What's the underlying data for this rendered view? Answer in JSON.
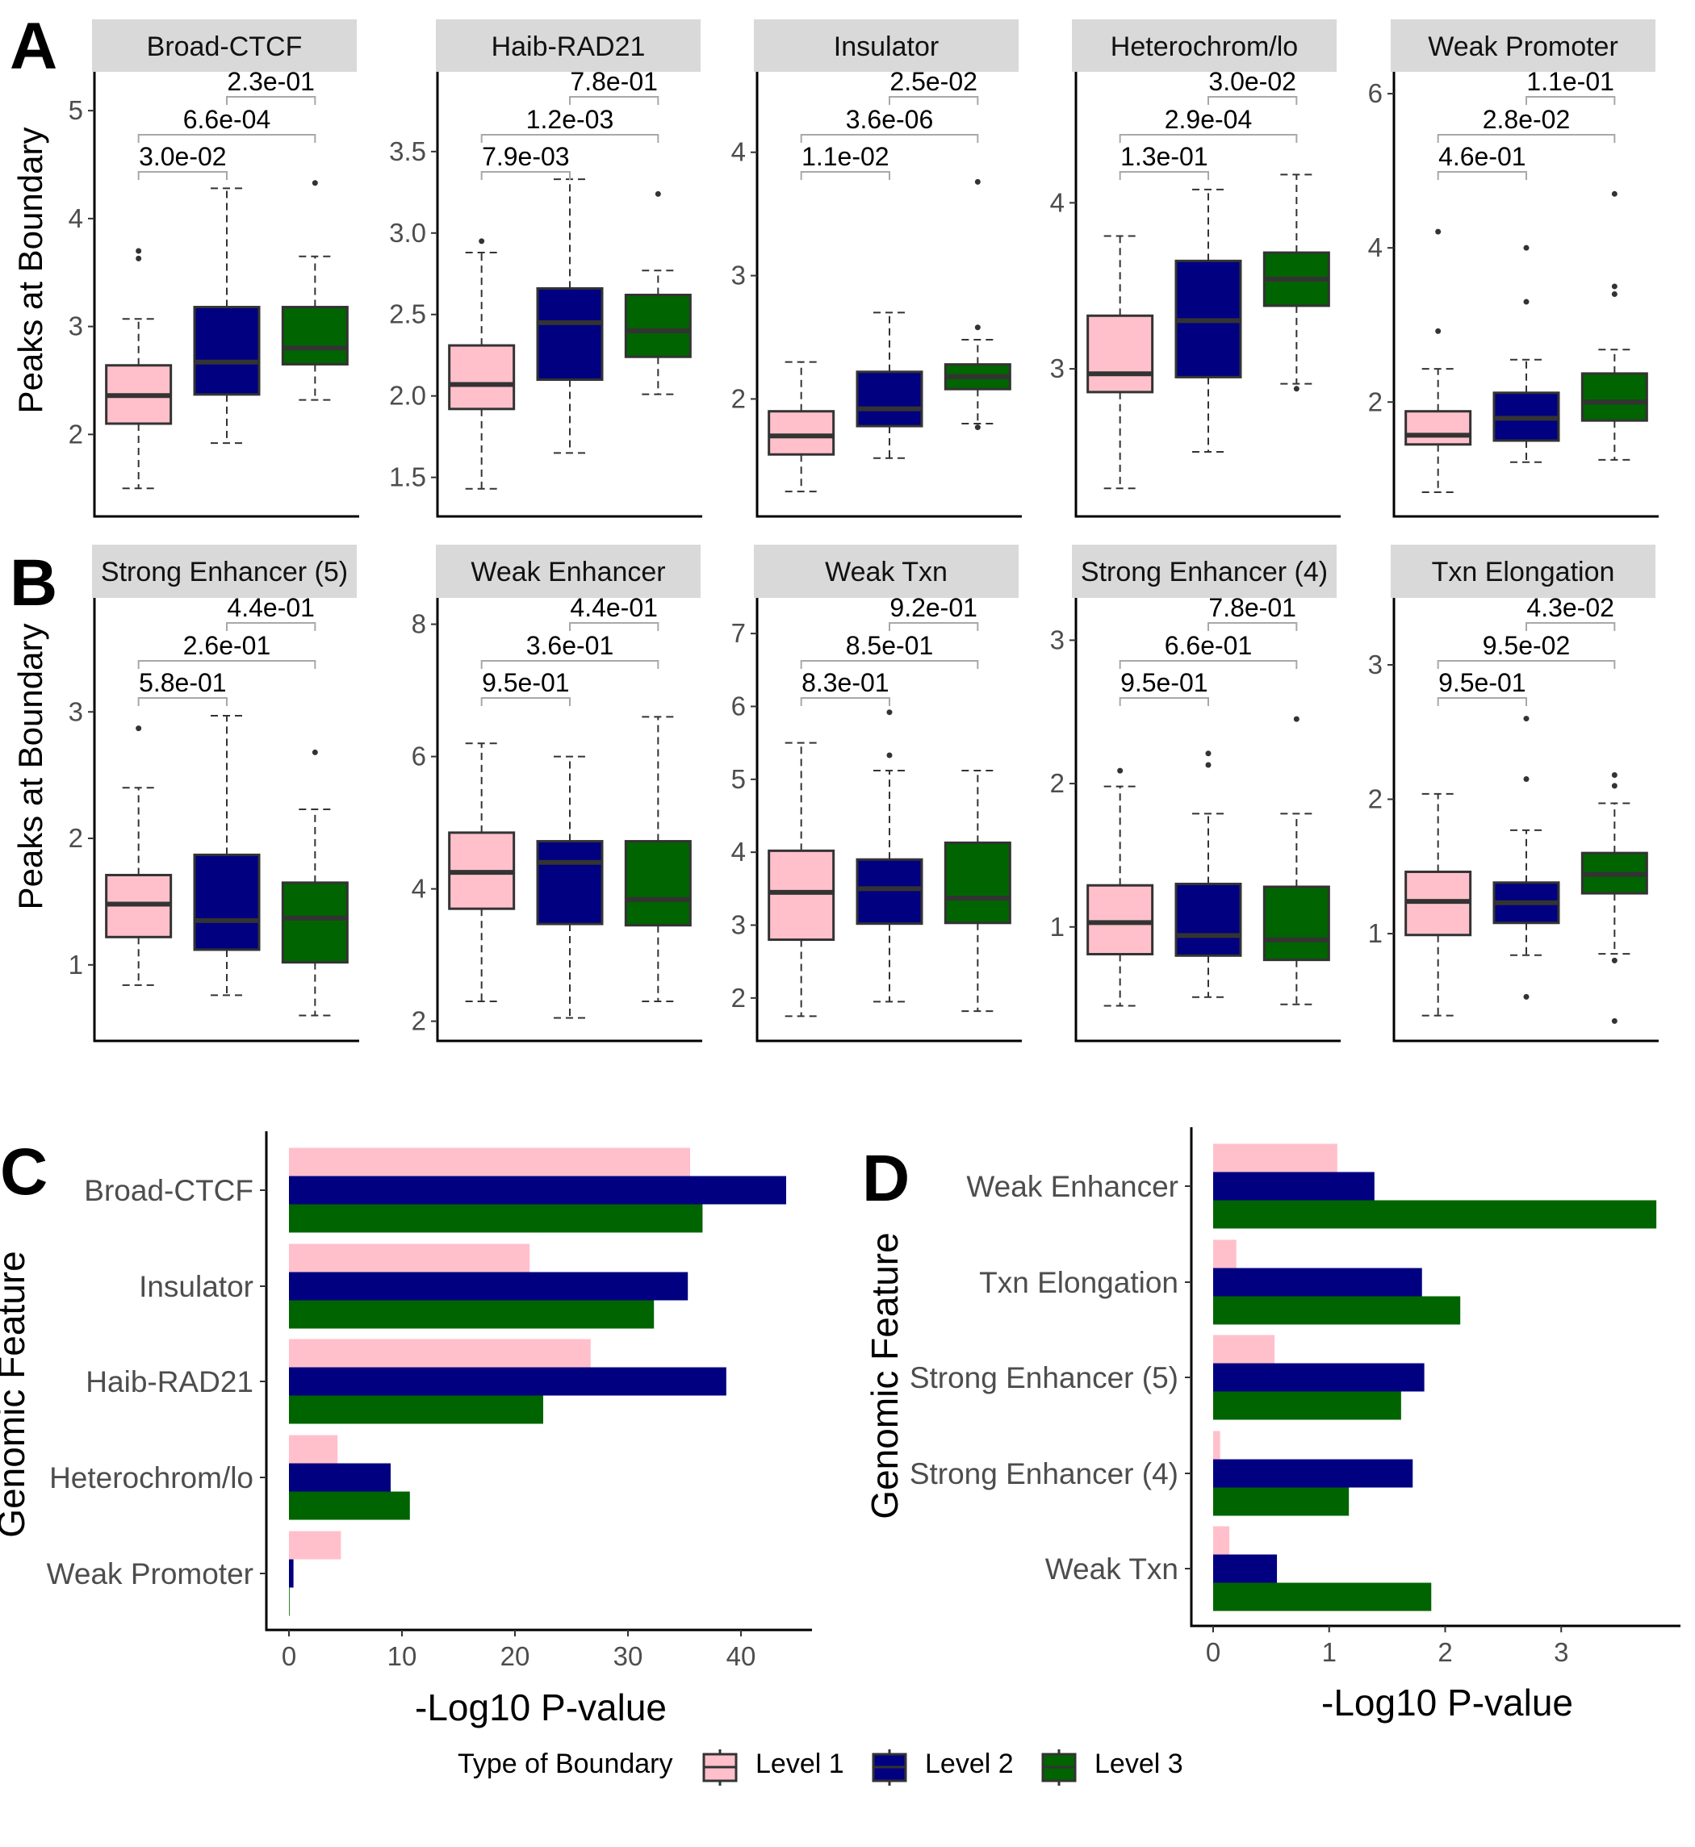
{
  "panel_labels": {
    "a": "A",
    "b": "B",
    "c": "C",
    "d": "D"
  },
  "colors": {
    "level1": "#FFC0CB",
    "level2": "#000080",
    "level3": "#006400",
    "strip": "#d9d9d9",
    "median": "#333333"
  },
  "chart_data": [
    {
      "type": "boxplot",
      "panel": "A",
      "ylabel": "Peaks at Boundary",
      "groups": [
        "Level 1",
        "Level 2",
        "Level 3"
      ],
      "facets": [
        {
          "title": "Broad-CTCF",
          "ylim": [
            1.3,
            5.3
          ],
          "ticks": [
            2,
            3,
            4,
            5
          ],
          "tick_labels": [
            "2",
            "3",
            "4",
            "5"
          ],
          "boxes": [
            {
              "wl": 1.5,
              "q1": 2.1,
              "med": 2.36,
              "q3": 2.64,
              "wh": 3.07,
              "out": [
                3.63,
                3.7
              ]
            },
            {
              "wl": 1.92,
              "q1": 2.37,
              "med": 2.67,
              "q3": 3.18,
              "wh": 4.28,
              "out": []
            },
            {
              "wl": 2.32,
              "q1": 2.65,
              "med": 2.8,
              "q3": 3.18,
              "wh": 3.65,
              "out": [
                4.33
              ]
            }
          ],
          "pvalues": [
            "3.0e-02",
            "6.6e-04",
            "2.3e-01"
          ]
        },
        {
          "title": "Haib-RAD21",
          "ylim": [
            1.3,
            3.95
          ],
          "ticks": [
            1.5,
            2.0,
            2.5,
            3.0,
            3.5
          ],
          "tick_labels": [
            "1.5",
            "2.0",
            "2.5",
            "3.0",
            "3.5"
          ],
          "boxes": [
            {
              "wl": 1.43,
              "q1": 1.92,
              "med": 2.07,
              "q3": 2.31,
              "wh": 2.88,
              "out": [
                2.95
              ]
            },
            {
              "wl": 1.65,
              "q1": 2.1,
              "med": 2.45,
              "q3": 2.66,
              "wh": 3.33,
              "out": []
            },
            {
              "wl": 2.01,
              "q1": 2.24,
              "med": 2.4,
              "q3": 2.62,
              "wh": 2.77,
              "out": [
                3.24
              ]
            }
          ],
          "pvalues": [
            "7.9e-03",
            "1.2e-03",
            "7.8e-01"
          ]
        },
        {
          "title": "Insulator",
          "ylim": [
            1.1,
            4.6
          ],
          "ticks": [
            2,
            3,
            4
          ],
          "tick_labels": [
            "2",
            "3",
            "4"
          ],
          "boxes": [
            {
              "wl": 1.25,
              "q1": 1.55,
              "med": 1.7,
              "q3": 1.9,
              "wh": 2.3,
              "out": []
            },
            {
              "wl": 1.52,
              "q1": 1.78,
              "med": 1.92,
              "q3": 2.22,
              "wh": 2.7,
              "out": []
            },
            {
              "wl": 1.8,
              "q1": 2.08,
              "med": 2.18,
              "q3": 2.28,
              "wh": 2.48,
              "out": [
                1.77,
                2.58,
                3.76
              ]
            }
          ],
          "pvalues": [
            "1.1e-02",
            "3.6e-06",
            "2.5e-02"
          ]
        },
        {
          "title": "Heterochrom/lo",
          "ylim": [
            2.15,
            4.75
          ],
          "ticks": [
            3,
            4
          ],
          "tick_labels": [
            "3",
            "4"
          ],
          "boxes": [
            {
              "wl": 2.28,
              "q1": 2.86,
              "med": 2.97,
              "q3": 3.32,
              "wh": 3.8,
              "out": []
            },
            {
              "wl": 2.5,
              "q1": 2.95,
              "med": 3.29,
              "q3": 3.65,
              "wh": 4.08,
              "out": []
            },
            {
              "wl": 2.91,
              "q1": 3.38,
              "med": 3.54,
              "q3": 3.7,
              "wh": 4.17,
              "out": [
                2.88
              ]
            }
          ],
          "pvalues": [
            "1.3e-01",
            "2.9e-04",
            "3.0e-02"
          ]
        },
        {
          "title": "Weak Promoter",
          "ylim": [
            0.6,
            6.2
          ],
          "ticks": [
            2,
            4,
            6
          ],
          "tick_labels": [
            "2",
            "4",
            "6"
          ],
          "boxes": [
            {
              "wl": 0.83,
              "q1": 1.45,
              "med": 1.57,
              "q3": 1.88,
              "wh": 2.43,
              "out": [
                2.92,
                4.21
              ]
            },
            {
              "wl": 1.22,
              "q1": 1.5,
              "med": 1.79,
              "q3": 2.12,
              "wh": 2.55,
              "out": [
                3.3,
                4.0
              ]
            },
            {
              "wl": 1.25,
              "q1": 1.76,
              "med": 2.0,
              "q3": 2.37,
              "wh": 2.68,
              "out": [
                3.4,
                3.5,
                4.7
              ]
            }
          ],
          "pvalues": [
            "4.6e-01",
            "2.8e-02",
            "1.1e-01"
          ]
        }
      ]
    },
    {
      "type": "boxplot",
      "panel": "B",
      "ylabel": "Peaks at Boundary",
      "groups": [
        "Level 1",
        "Level 2",
        "Level 3"
      ],
      "facets": [
        {
          "title": "Strong Enhancer (5)",
          "ylim": [
            0.45,
            3.85
          ],
          "ticks": [
            1,
            2,
            3
          ],
          "tick_labels": [
            "1",
            "2",
            "3"
          ],
          "boxes": [
            {
              "wl": 0.84,
              "q1": 1.22,
              "med": 1.48,
              "q3": 1.71,
              "wh": 2.4,
              "out": [
                2.87
              ]
            },
            {
              "wl": 0.76,
              "q1": 1.12,
              "med": 1.35,
              "q3": 1.87,
              "wh": 2.97,
              "out": []
            },
            {
              "wl": 0.6,
              "q1": 1.02,
              "med": 1.37,
              "q3": 1.65,
              "wh": 2.23,
              "out": [
                2.68
              ]
            }
          ],
          "pvalues": [
            "5.8e-01",
            "2.6e-01",
            "4.4e-01"
          ]
        },
        {
          "title": "Weak Enhancer",
          "ylim": [
            1.8,
            8.3
          ],
          "ticks": [
            2,
            4,
            6,
            8
          ],
          "tick_labels": [
            "2",
            "4",
            "6",
            "8"
          ],
          "boxes": [
            {
              "wl": 2.3,
              "q1": 3.7,
              "med": 4.25,
              "q3": 4.85,
              "wh": 6.2,
              "out": []
            },
            {
              "wl": 2.05,
              "q1": 3.47,
              "med": 4.4,
              "q3": 4.72,
              "wh": 6.0,
              "out": []
            },
            {
              "wl": 2.3,
              "q1": 3.45,
              "med": 3.84,
              "q3": 4.72,
              "wh": 6.6,
              "out": []
            }
          ],
          "pvalues": [
            "9.5e-01",
            "3.6e-01",
            "4.4e-01"
          ]
        },
        {
          "title": "Weak Txn",
          "ylim": [
            1.5,
            7.4
          ],
          "ticks": [
            2,
            3,
            4,
            5,
            6,
            7
          ],
          "tick_labels": [
            "2",
            "3",
            "4",
            "5",
            "6",
            "7"
          ],
          "boxes": [
            {
              "wl": 1.75,
              "q1": 2.8,
              "med": 3.45,
              "q3": 4.02,
              "wh": 5.5,
              "out": []
            },
            {
              "wl": 1.95,
              "q1": 3.02,
              "med": 3.5,
              "q3": 3.9,
              "wh": 5.12,
              "out": [
                5.33,
                5.92
              ]
            },
            {
              "wl": 1.82,
              "q1": 3.03,
              "med": 3.37,
              "q3": 4.13,
              "wh": 5.12,
              "out": []
            }
          ],
          "pvalues": [
            "8.3e-01",
            "8.5e-01",
            "9.2e-01"
          ]
        },
        {
          "title": "Strong Enhancer (4)",
          "ylim": [
            0.25,
            3.25
          ],
          "ticks": [
            1,
            2,
            3
          ],
          "tick_labels": [
            "1",
            "2",
            "3"
          ],
          "boxes": [
            {
              "wl": 0.45,
              "q1": 0.81,
              "med": 1.03,
              "q3": 1.29,
              "wh": 1.98,
              "out": [
                2.09
              ]
            },
            {
              "wl": 0.51,
              "q1": 0.8,
              "med": 0.94,
              "q3": 1.3,
              "wh": 1.79,
              "out": [
                2.13,
                2.21
              ]
            },
            {
              "wl": 0.46,
              "q1": 0.77,
              "med": 0.91,
              "q3": 1.28,
              "wh": 1.79,
              "out": [
                2.45
              ]
            }
          ],
          "pvalues": [
            "9.5e-01",
            "6.6e-01",
            "7.8e-01"
          ]
        },
        {
          "title": "Txn Elongation",
          "ylim": [
            0.25,
            3.45
          ],
          "ticks": [
            1,
            2,
            3
          ],
          "tick_labels": [
            "1",
            "2",
            "3"
          ],
          "boxes": [
            {
              "wl": 0.39,
              "q1": 0.99,
              "med": 1.24,
              "q3": 1.46,
              "wh": 2.04,
              "out": []
            },
            {
              "wl": 0.84,
              "q1": 1.08,
              "med": 1.23,
              "q3": 1.38,
              "wh": 1.77,
              "out": [
                0.53,
                2.15,
                2.6
              ]
            },
            {
              "wl": 0.85,
              "q1": 1.3,
              "med": 1.44,
              "q3": 1.6,
              "wh": 1.97,
              "out": [
                0.8,
                2.1,
                2.18,
                0.35
              ]
            }
          ],
          "pvalues": [
            "9.5e-01",
            "9.5e-02",
            "4.3e-02"
          ]
        }
      ]
    },
    {
      "type": "bar",
      "panel": "C",
      "orientation": "horizontal",
      "xlabel": "-Log10 P-value",
      "ylabel": "Genomic Feature",
      "xlim": [
        0,
        46
      ],
      "ticks": [
        0,
        10,
        20,
        30,
        40
      ],
      "tick_labels": [
        "0",
        "10",
        "20",
        "30",
        "40"
      ],
      "categories": [
        "Broad-CTCF",
        "Insulator",
        "Haib-RAD21",
        "Heterochrom/lo",
        "Weak Promoter"
      ],
      "series": [
        {
          "name": "Level 1",
          "values": [
            35.5,
            21.3,
            26.7,
            4.3,
            4.6
          ]
        },
        {
          "name": "Level 2",
          "values": [
            44.0,
            35.3,
            38.7,
            9.0,
            0.4
          ]
        },
        {
          "name": "Level 3",
          "values": [
            36.6,
            32.3,
            22.5,
            10.7,
            0.05
          ]
        }
      ]
    },
    {
      "type": "bar",
      "panel": "D",
      "orientation": "horizontal",
      "xlabel": "-Log10 P-value",
      "ylabel": "Genomic Feature",
      "xlim": [
        0,
        4.0
      ],
      "ticks": [
        0,
        1,
        2,
        3
      ],
      "tick_labels": [
        "0",
        "1",
        "2",
        "3"
      ],
      "categories": [
        "Weak Enhancer",
        "Txn Elongation",
        "Strong Enhancer (5)",
        "Strong Enhancer (4)",
        "Weak Txn"
      ],
      "series": [
        {
          "name": "Level 1",
          "values": [
            1.07,
            0.2,
            0.53,
            0.06,
            0.14
          ]
        },
        {
          "name": "Level 2",
          "values": [
            1.39,
            1.8,
            1.82,
            1.72,
            0.55
          ]
        },
        {
          "name": "Level 3",
          "values": [
            3.82,
            2.13,
            1.62,
            1.17,
            1.88
          ]
        }
      ]
    }
  ],
  "legend": {
    "title": "Type of Boundary",
    "items": [
      "Level 1",
      "Level 2",
      "Level 3"
    ]
  }
}
